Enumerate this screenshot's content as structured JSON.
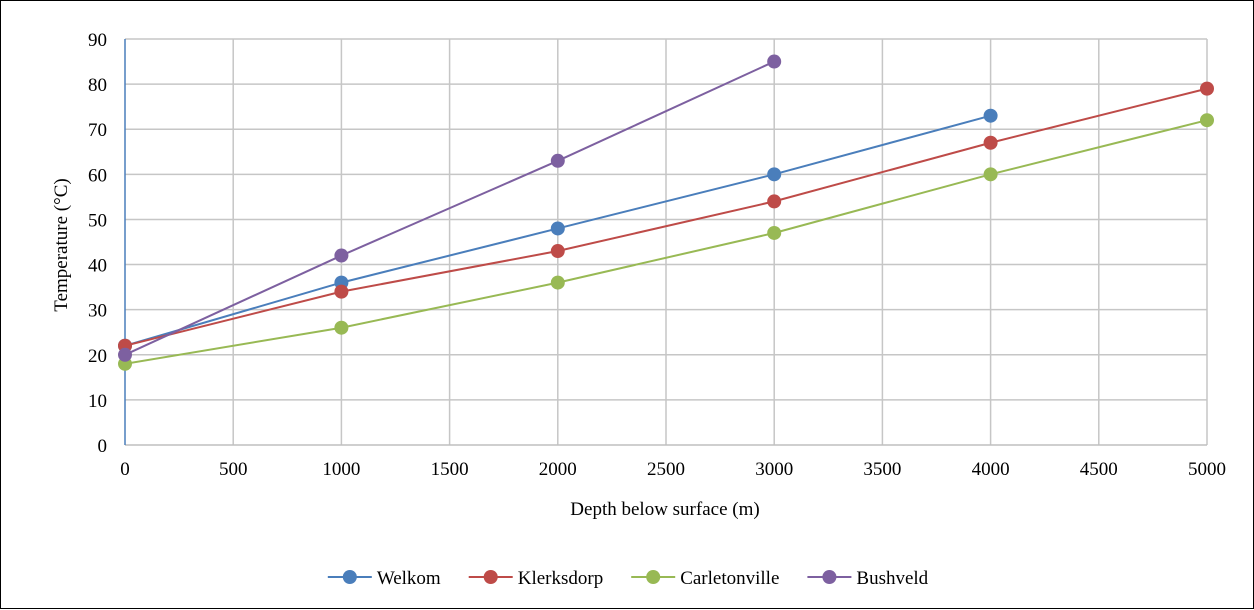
{
  "chart_data": {
    "type": "line",
    "title": "",
    "xlabel": "Depth below surface (m)",
    "ylabel": "Temperature (°C)",
    "xlim": [
      0,
      5000
    ],
    "ylim": [
      0,
      90
    ],
    "x_ticks": [
      0,
      500,
      1000,
      1500,
      2000,
      2500,
      3000,
      3500,
      4000,
      4500,
      5000
    ],
    "y_ticks": [
      0,
      10,
      20,
      30,
      40,
      50,
      60,
      70,
      80,
      90
    ],
    "grid": true,
    "legend_position": "bottom",
    "series": [
      {
        "name": "Welkom",
        "color": "#4a7ebb",
        "points": [
          [
            0,
            22
          ],
          [
            1000,
            36
          ],
          [
            2000,
            48
          ],
          [
            3000,
            60
          ],
          [
            4000,
            73
          ]
        ]
      },
      {
        "name": "Klerksdorp",
        "color": "#be4b48",
        "points": [
          [
            0,
            22
          ],
          [
            1000,
            34
          ],
          [
            2000,
            43
          ],
          [
            3000,
            54
          ],
          [
            4000,
            67
          ],
          [
            5000,
            79
          ]
        ]
      },
      {
        "name": "Carletonville",
        "color": "#98b954",
        "points": [
          [
            0,
            18
          ],
          [
            1000,
            26
          ],
          [
            2000,
            36
          ],
          [
            3000,
            47
          ],
          [
            4000,
            60
          ],
          [
            5000,
            72
          ]
        ]
      },
      {
        "name": "Bushveld",
        "color": "#7d60a0",
        "points": [
          [
            0,
            20
          ],
          [
            1000,
            42
          ],
          [
            2000,
            63
          ],
          [
            3000,
            85
          ]
        ]
      }
    ]
  }
}
